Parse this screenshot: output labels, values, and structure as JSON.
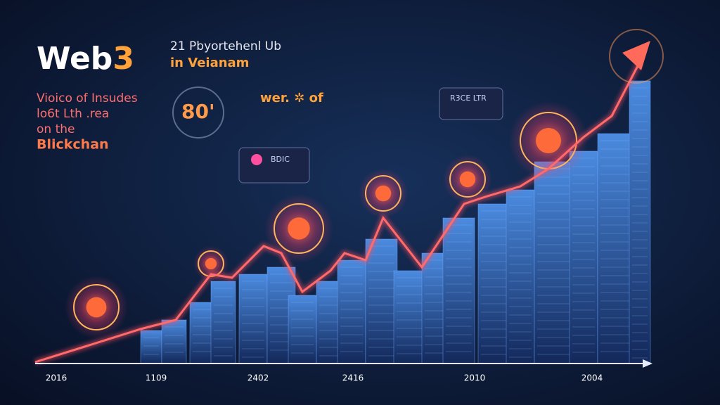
{
  "header": {
    "title_main": "Web",
    "title_accent": "3",
    "subtitle_line1": "21 Pbyortehenl Ub",
    "subtitle_line2": "in Veianam"
  },
  "intro": {
    "line1": "Vioico of Insudes",
    "line2": "lo6t Lth .rea",
    "line3": "on the",
    "line4": "Blickchan"
  },
  "callouts": {
    "stat": "80'",
    "stat_caption": "wer. ✲ of",
    "box_left": "BDIC",
    "box_right": "R3CE LTR"
  },
  "timeline": {
    "labels": [
      "2016",
      "1109",
      "2402",
      "2416",
      "2010",
      "2004"
    ]
  }
}
